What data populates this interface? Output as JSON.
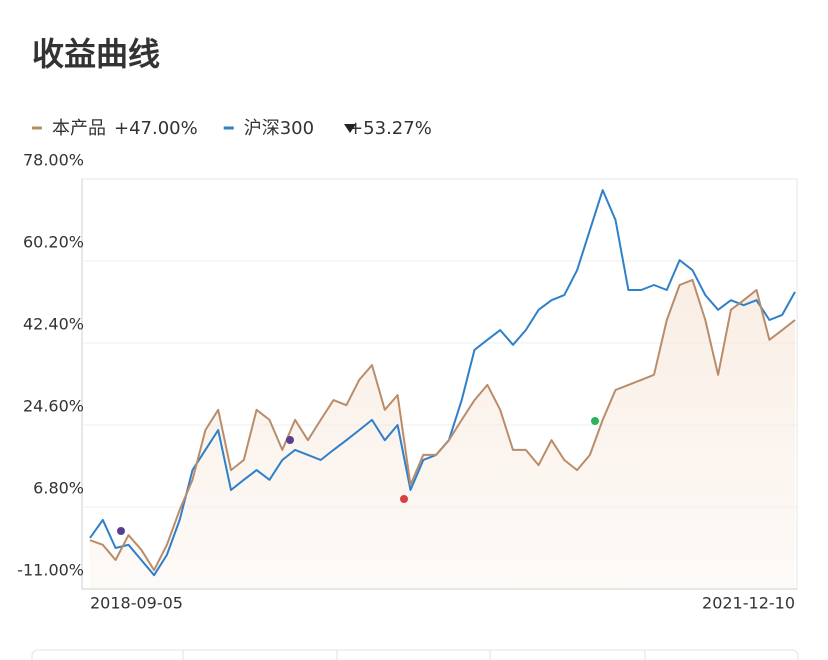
{
  "chart_data": {
    "type": "line",
    "title": "收益曲线",
    "categories": [
      "2018-09-05",
      null,
      null,
      null,
      null,
      null,
      null,
      null,
      null,
      null,
      null,
      null,
      null,
      null,
      null,
      null,
      null,
      null,
      null,
      null,
      null,
      null,
      null,
      null,
      null,
      null,
      null,
      null,
      null,
      null,
      null,
      null,
      null,
      null,
      null,
      null,
      null,
      null,
      null,
      null,
      null,
      null,
      null,
      null,
      null,
      null,
      null,
      null,
      null,
      null,
      null,
      null,
      null,
      null,
      null,
      "2021-12-10"
    ],
    "series": [
      {
        "name": "本产品",
        "change": "+47.00%",
        "color": "#b98c6a",
        "values": [
          -0.4,
          -1.4,
          -4.7,
          0.7,
          -2.5,
          -6.9,
          -1.4,
          6.2,
          12.7,
          23.5,
          27.9,
          14.8,
          17.0,
          27.9,
          25.7,
          19.2,
          25.7,
          21.3,
          25.7,
          30.0,
          28.9,
          34.4,
          37.6,
          27.9,
          31.1,
          11.6,
          18.1,
          18.1,
          21.3,
          25.7,
          30.0,
          33.3,
          27.9,
          19.2,
          19.2,
          15.9,
          21.3,
          17.0,
          14.8,
          18.1,
          25.7,
          32.2,
          33.3,
          34.4,
          35.5,
          47.4,
          55.0,
          56.1,
          47.4,
          35.5,
          49.6,
          51.7,
          53.9,
          43.1,
          45.2,
          47.4
        ]
      },
      {
        "name": "沪深300",
        "change": "+53.27%",
        "color": "#2f7fc9",
        "values": [
          0.1,
          4.0,
          -2.1,
          -1.4,
          -4.7,
          -8.0,
          -3.6,
          4.0,
          14.8,
          19.2,
          23.5,
          10.5,
          12.7,
          14.8,
          12.7,
          17.0,
          19.2,
          18.1,
          17.0,
          19.2,
          21.3,
          23.5,
          25.7,
          21.3,
          24.6,
          10.5,
          17.0,
          18.1,
          21.3,
          30.0,
          40.9,
          43.1,
          45.2,
          42.0,
          45.2,
          49.6,
          51.7,
          52.8,
          58.2,
          66.9,
          75.6,
          69.1,
          53.9,
          53.9,
          55.0,
          53.9,
          60.4,
          58.2,
          52.8,
          49.6,
          51.7,
          50.6,
          51.7,
          47.4,
          48.5,
          53.5
        ]
      }
    ],
    "ylim": [
      -11,
      78
    ],
    "yticks": [
      {
        "value": 78,
        "label": "78.00%"
      },
      {
        "value": 60.2,
        "label": "60.20%"
      },
      {
        "value": 42.4,
        "label": "42.40%"
      },
      {
        "value": 24.6,
        "label": "24.60%"
      },
      {
        "value": 6.8,
        "label": "6.80%"
      },
      {
        "value": -11,
        "label": "-11.00%"
      }
    ],
    "grid": true
  }
}
